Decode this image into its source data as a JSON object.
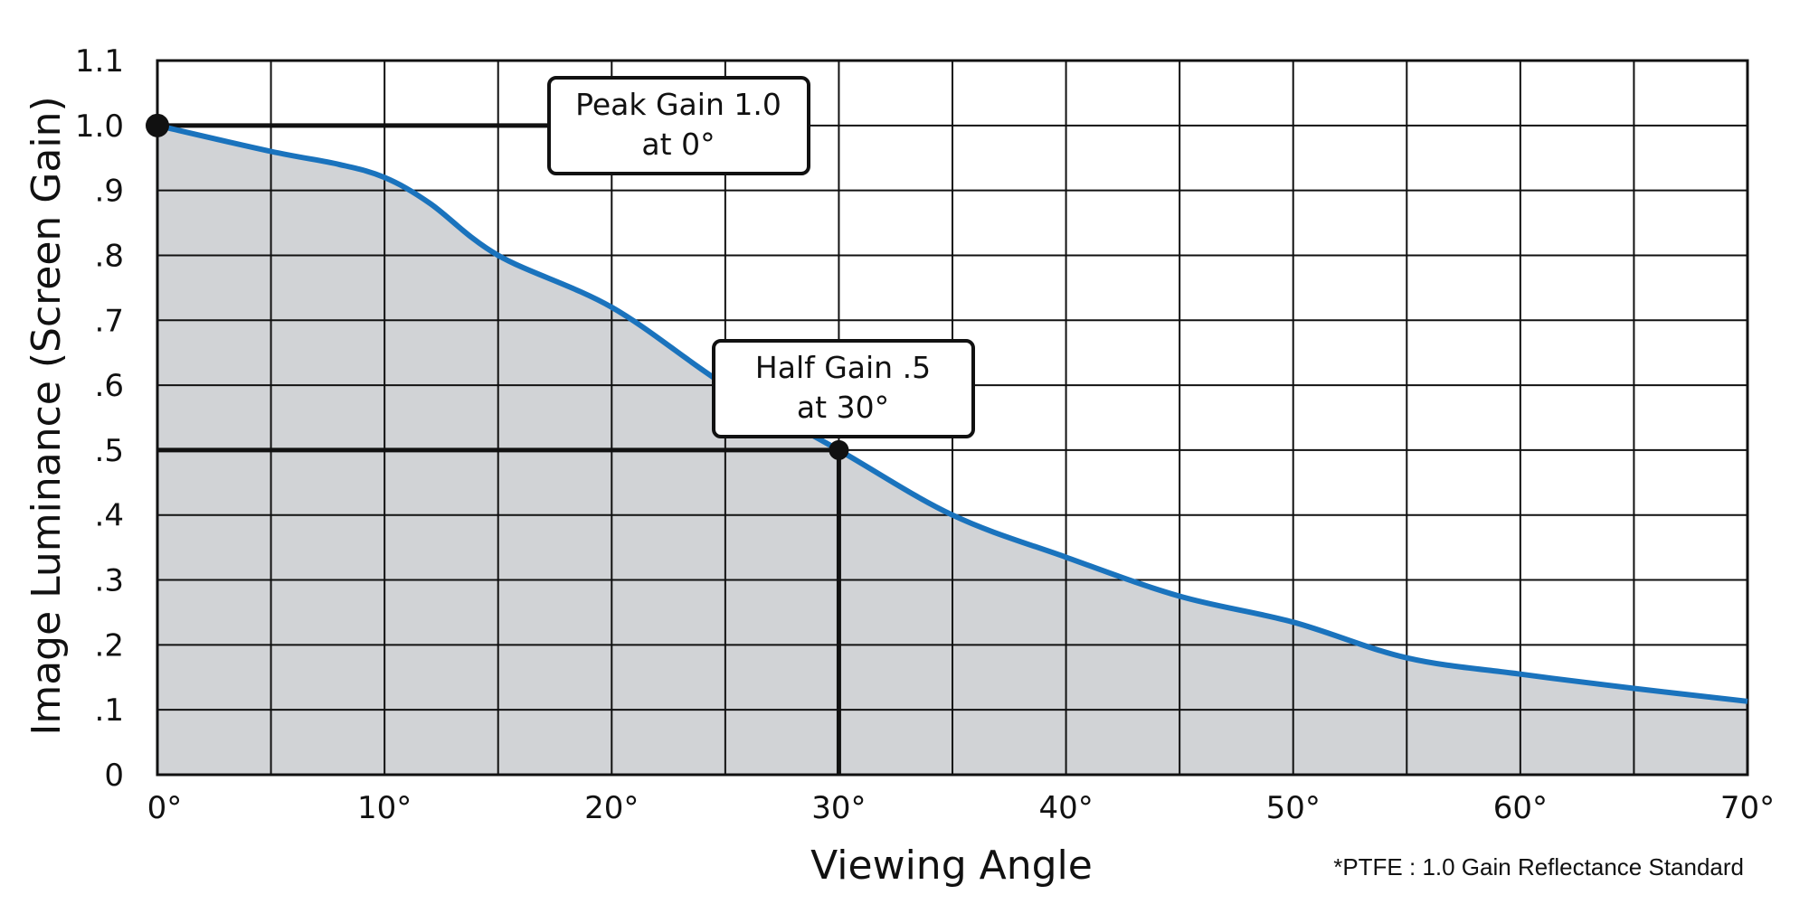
{
  "chart_data": {
    "type": "area",
    "xlabel": "Viewing Angle",
    "ylabel": "Image Luminance  (Screen Gain)",
    "xlim": [
      0,
      70
    ],
    "ylim": [
      0,
      1.1
    ],
    "x_ticks": [
      0,
      10,
      20,
      30,
      40,
      50,
      60,
      70
    ],
    "x_tick_labels": [
      "0°",
      "10°",
      "20°",
      "30°",
      "40°",
      "50°",
      "60°",
      "70°"
    ],
    "y_ticks": [
      0,
      0.1,
      0.2,
      0.3,
      0.4,
      0.5,
      0.6,
      0.7,
      0.8,
      0.9,
      1.0,
      1.1
    ],
    "y_tick_labels": [
      "0",
      ".1",
      ".2",
      ".3",
      ".4",
      ".5",
      ".6",
      ".7",
      ".8",
      ".9",
      "1.0",
      "1.1"
    ],
    "grid": true,
    "grid_x_step": 5,
    "grid_y_step": 0.1,
    "series": [
      {
        "x": [
          0,
          5,
          8,
          10,
          12,
          15,
          20,
          25,
          30,
          35,
          40,
          45,
          50,
          55,
          60,
          65,
          70
        ],
        "y": [
          1.0,
          0.96,
          0.94,
          0.92,
          0.88,
          0.8,
          0.72,
          0.6,
          0.5,
          0.4,
          0.335,
          0.275,
          0.235,
          0.18,
          0.155,
          0.133,
          0.113
        ]
      }
    ],
    "colors": {
      "line": "#1a73bd",
      "fill": "#d1d3d6",
      "grid": "#111111"
    },
    "annotations": [
      {
        "name": "peak-gain",
        "line1": "Peak Gain 1.0",
        "line2": "at 0°",
        "point": [
          0,
          1.0
        ]
      },
      {
        "name": "half-gain",
        "line1": "Half Gain .5",
        "line2": "at 30°",
        "point": [
          30,
          0.5
        ]
      }
    ],
    "footnote": "*PTFE :  1.0 Gain Reflectance Standard"
  }
}
